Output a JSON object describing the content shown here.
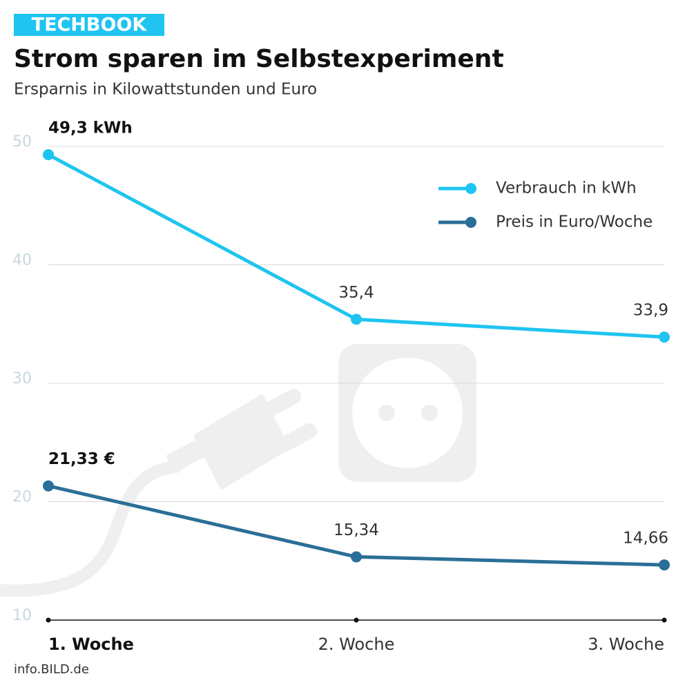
{
  "chart_data": {
    "type": "line",
    "brand": "TECHBOOK",
    "title": "Strom sparen im Selbstexperiment",
    "subtitle": "Ersparnis in Kilowattstunden und Euro",
    "source": "info.BILD.de",
    "categories": [
      "1. Woche",
      "2. Woche",
      "3. Woche"
    ],
    "series": [
      {
        "name": "Verbrauch in kWh",
        "color": "#1fc4f0",
        "values": [
          49.3,
          35.4,
          33.9
        ],
        "value_labels": [
          "49,3 kWh",
          "35,4",
          "33,9"
        ]
      },
      {
        "name": "Preis in Euro/Woche",
        "color": "#2a6f97",
        "values": [
          21.33,
          15.34,
          14.66
        ],
        "value_labels": [
          "21,33 €",
          "15,34",
          "14,66"
        ]
      }
    ],
    "ylim": [
      10,
      50
    ],
    "yticks": [
      10,
      20,
      30,
      40,
      50
    ],
    "grid": true,
    "legend": "upper right"
  }
}
